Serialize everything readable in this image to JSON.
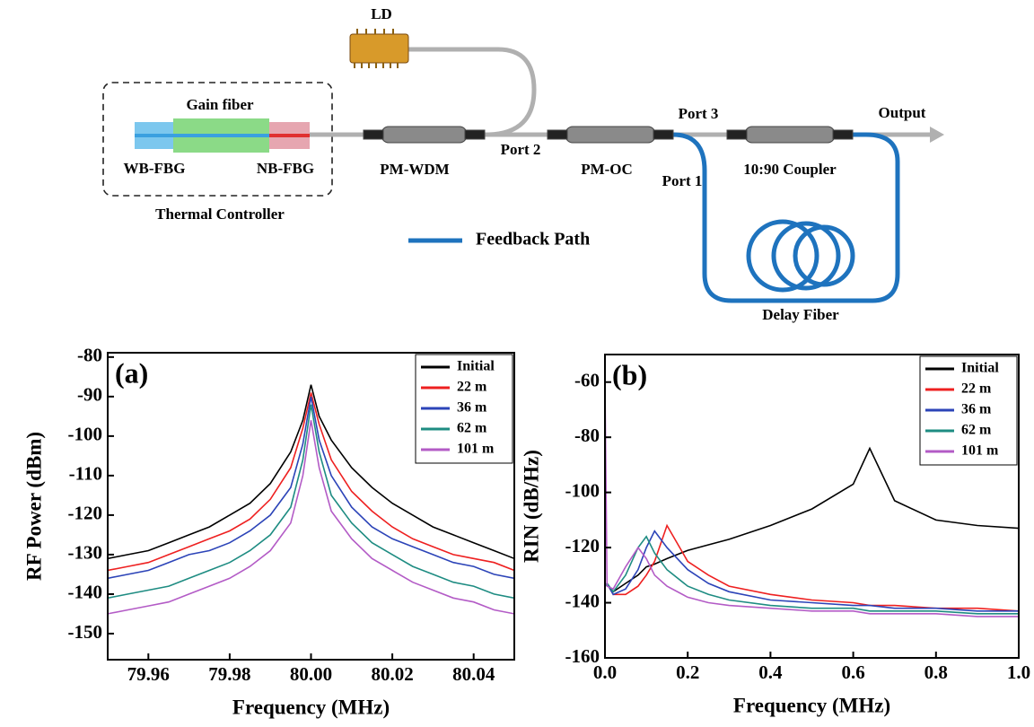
{
  "diagram": {
    "ld": "LD",
    "gain_fiber": "Gain fiber",
    "wb_fbg": "WB-FBG",
    "nb_fbg": "NB-FBG",
    "thermal_controller": "Thermal Controller",
    "pm_wdm": "PM-WDM",
    "port2": "Port 2",
    "pm_oc": "PM-OC",
    "port3": "Port 3",
    "port1": "Port 1",
    "coupler": "10:90 Coupler",
    "output": "Output",
    "feedback_path": "Feedback Path",
    "delay_fiber": "Delay Fiber"
  },
  "chart_data": [
    {
      "type": "line",
      "panel_label": "(a)",
      "x_label": "Frequency (MHz)",
      "y_label": "RF Power (dBm)",
      "x": [
        79.95,
        79.955,
        79.96,
        79.965,
        79.97,
        79.975,
        79.98,
        79.985,
        79.99,
        79.995,
        79.998,
        80.0,
        80.002,
        80.005,
        80.01,
        80.015,
        80.02,
        80.025,
        80.03,
        80.035,
        80.04,
        80.045,
        80.05
      ],
      "series": [
        {
          "name": "Initial",
          "color": "#000000",
          "values": [
            -131,
            -130,
            -129,
            -127,
            -125,
            -123,
            -120,
            -117,
            -112,
            -104,
            -96,
            -87,
            -95,
            -101,
            -108,
            -113,
            -117,
            -120,
            -123,
            -125,
            -127,
            -129,
            -131
          ]
        },
        {
          "name": "22 m",
          "color": "#ee2020",
          "values": [
            -134,
            -133,
            -132,
            -130,
            -128,
            -126,
            -124,
            -121,
            -116,
            -108,
            -98,
            -89,
            -97,
            -106,
            -114,
            -119,
            -123,
            -126,
            -128,
            -130,
            -131,
            -132,
            -134
          ]
        },
        {
          "name": "36 m",
          "color": "#2c44b8",
          "values": [
            -136,
            -135,
            -134,
            -132,
            -130,
            -129,
            -127,
            -124,
            -120,
            -113,
            -102,
            -90,
            -101,
            -110,
            -118,
            -123,
            -126,
            -128,
            -130,
            -132,
            -133,
            -135,
            -136
          ]
        },
        {
          "name": "62 m",
          "color": "#1e8c82",
          "values": [
            -141,
            -140,
            -139,
            -138,
            -136,
            -134,
            -132,
            -129,
            -125,
            -118,
            -106,
            -92,
            -104,
            -115,
            -122,
            -127,
            -130,
            -133,
            -135,
            -137,
            -138,
            -140,
            -141
          ]
        },
        {
          "name": "101 m",
          "color": "#b35bc6",
          "values": [
            -145,
            -144,
            -143,
            -142,
            -140,
            -138,
            -136,
            -133,
            -129,
            -122,
            -110,
            -96,
            -108,
            -119,
            -126,
            -131,
            -134,
            -137,
            -139,
            -141,
            -142,
            -144,
            -145
          ]
        }
      ],
      "xlim": [
        79.95,
        80.05
      ],
      "xticks": [
        79.96,
        79.98,
        {
          "value": 80,
          "label": "80.00"
        },
        80.02,
        80.04
      ],
      "ylim": [
        -156.6,
        -78.9
      ],
      "yticks": [
        -150,
        -140,
        -130,
        -120,
        -110,
        -100,
        -90,
        -80
      ],
      "legend": "upper right"
    },
    {
      "type": "line",
      "panel_label": "(b)",
      "x_label": "Frequency (MHz)",
      "y_label": "RIN (dB/Hz)",
      "x": [
        0,
        0.005,
        0.02,
        0.05,
        0.08,
        0.1,
        0.12,
        0.15,
        0.2,
        0.25,
        0.3,
        0.4,
        0.5,
        0.6,
        0.64,
        0.7,
        0.8,
        0.9,
        1.0
      ],
      "series": [
        {
          "name": "Initial",
          "color": "#000000",
          "values": [
            -134,
            -133,
            -136,
            -133,
            -130,
            -127,
            -126,
            -124,
            -121,
            -119,
            -117,
            -112,
            -106,
            -97,
            -84,
            -103,
            -110,
            -112,
            -113
          ]
        },
        {
          "name": "22 m",
          "color": "#ee2020",
          "values": [
            -134,
            -133,
            -137,
            -137,
            -134,
            -130,
            -125,
            -112,
            -125,
            -130,
            -134,
            -137,
            -139,
            -140,
            -141,
            -141,
            -142,
            -142,
            -143
          ]
        },
        {
          "name": "36 m",
          "color": "#2c44b8",
          "values": [
            -134,
            -133,
            -137,
            -135,
            -128,
            -120,
            -114,
            -120,
            -128,
            -133,
            -136,
            -139,
            -140,
            -141,
            -141,
            -142,
            -142,
            -143,
            -143
          ]
        },
        {
          "name": "62 m",
          "color": "#1e8c82",
          "values": [
            -134,
            -133,
            -136,
            -130,
            -120,
            -116,
            -122,
            -128,
            -134,
            -137,
            -139,
            -141,
            -142,
            -142,
            -143,
            -143,
            -143,
            -144,
            -144
          ]
        },
        {
          "name": "101 m",
          "color": "#b35bc6",
          "values": [
            -60,
            -134,
            -135,
            -127,
            -120,
            -124,
            -130,
            -134,
            -138,
            -140,
            -141,
            -142,
            -143,
            -143,
            -144,
            -144,
            -144,
            -145,
            -145
          ]
        }
      ],
      "xlim": [
        0,
        1.0
      ],
      "xticks": [
        {
          "value": 0,
          "label": "0.0"
        },
        0.2,
        0.4,
        0.6,
        0.8,
        {
          "value": 1,
          "label": "1.0"
        }
      ],
      "ylim": [
        -160,
        -50
      ],
      "yticks": [
        -160,
        -140,
        -120,
        -100,
        -80,
        -60
      ],
      "legend": "upper right"
    }
  ]
}
